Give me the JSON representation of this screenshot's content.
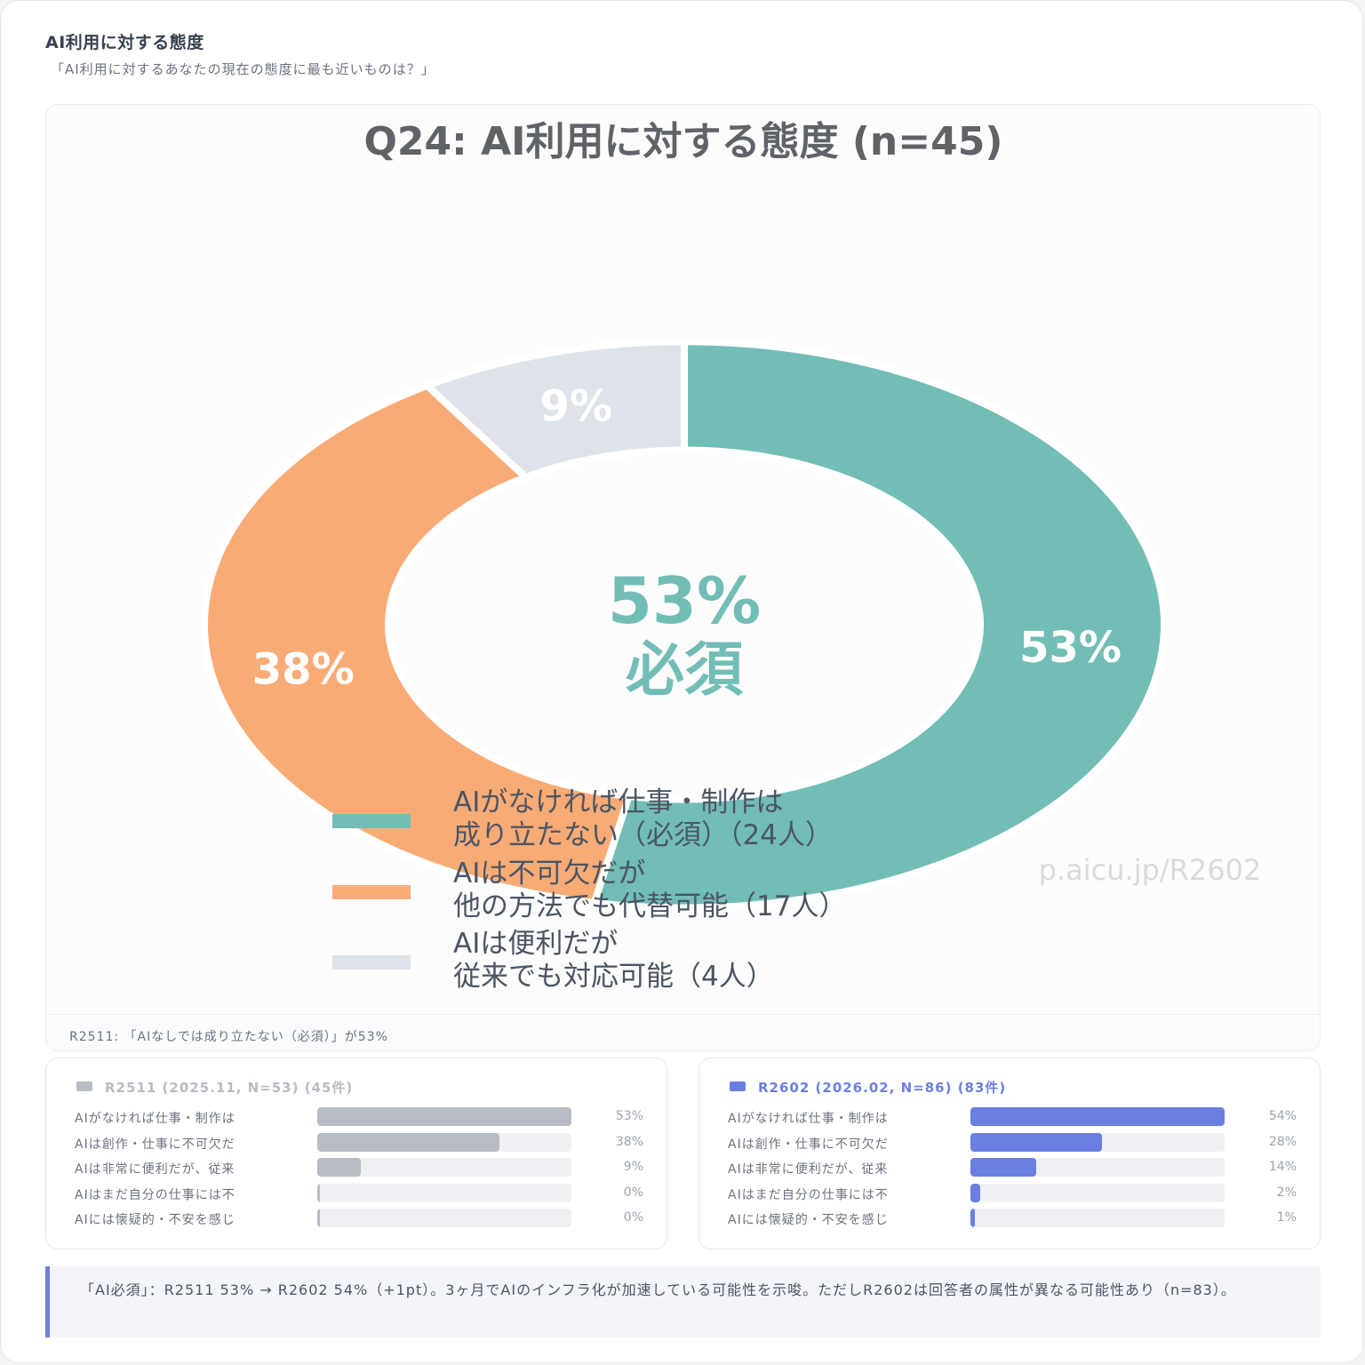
{
  "header": {
    "title": "AI利用に対する態度",
    "subtitle": "「AI利用に対するあなたの現在の態度に最も近いものは？」"
  },
  "colors": {
    "teal": "#72bdb6",
    "orange": "#f9ab76",
    "gray_slice": "#dee3ea",
    "r2511_bar": "#b7bcc4",
    "r2602_bar": "#6b7fe0",
    "r2602_text": "#6b7fe0"
  },
  "chart_data": {
    "type": "pie",
    "title": "Q24: AI利用に対する態度 (n=45)",
    "center_value": "53%",
    "center_label": "必須",
    "watermark": "p.aicu.jp/R2602",
    "slices": [
      {
        "value": 53,
        "label": "53%",
        "legend": [
          "AIがなければ仕事・制作は",
          "成り立たない（必須）（24人）"
        ],
        "count": 24,
        "color": "#72bdb6"
      },
      {
        "value": 38,
        "label": "38%",
        "legend": [
          "AIは不可欠だが",
          "他の方法でも代替可能（17人）"
        ],
        "count": 17,
        "color": "#f9ab76"
      },
      {
        "value": 9,
        "label": "9%",
        "legend": [
          "AIは便利だが",
          "従来でも対応可能（4人）"
        ],
        "count": 4,
        "color": "#dee3ea"
      }
    ]
  },
  "chart_caption": "R2511: 「AIなしでは成り立たない（必須）」が53%",
  "comparison": {
    "r2511": {
      "title": "R2511 (2025.11, N=53) (45件)",
      "rows": [
        {
          "label": "AIがなければ仕事・制作は",
          "value": 53,
          "pct": "53%"
        },
        {
          "label": "AIは創作・仕事に不可欠だ",
          "value": 38,
          "pct": "38%"
        },
        {
          "label": "AIは非常に便利だが、従来",
          "value": 9,
          "pct": "9%"
        },
        {
          "label": "AIはまだ自分の仕事には不",
          "value": 0,
          "pct": "0%"
        },
        {
          "label": "AIには懐疑的・不安を感じ",
          "value": 0,
          "pct": "0%"
        }
      ]
    },
    "r2602": {
      "title": "R2602 (2026.02, N=86) (83件)",
      "rows": [
        {
          "label": "AIがなければ仕事・制作は",
          "value": 54,
          "pct": "54%"
        },
        {
          "label": "AIは創作・仕事に不可欠だ",
          "value": 28,
          "pct": "28%"
        },
        {
          "label": "AIは非常に便利だが、従来",
          "value": 14,
          "pct": "14%"
        },
        {
          "label": "AIはまだ自分の仕事には不",
          "value": 2,
          "pct": "2%"
        },
        {
          "label": "AIには懐疑的・不安を感じ",
          "value": 1,
          "pct": "1%"
        }
      ]
    }
  },
  "note": "「AI必須」：R2511 53% → R2602 54%（+1pt）。3ヶ月でAIのインフラ化が加速している可能性を示唆。ただしR2602は回答者の属性が異なる可能性あり（n=83）。"
}
